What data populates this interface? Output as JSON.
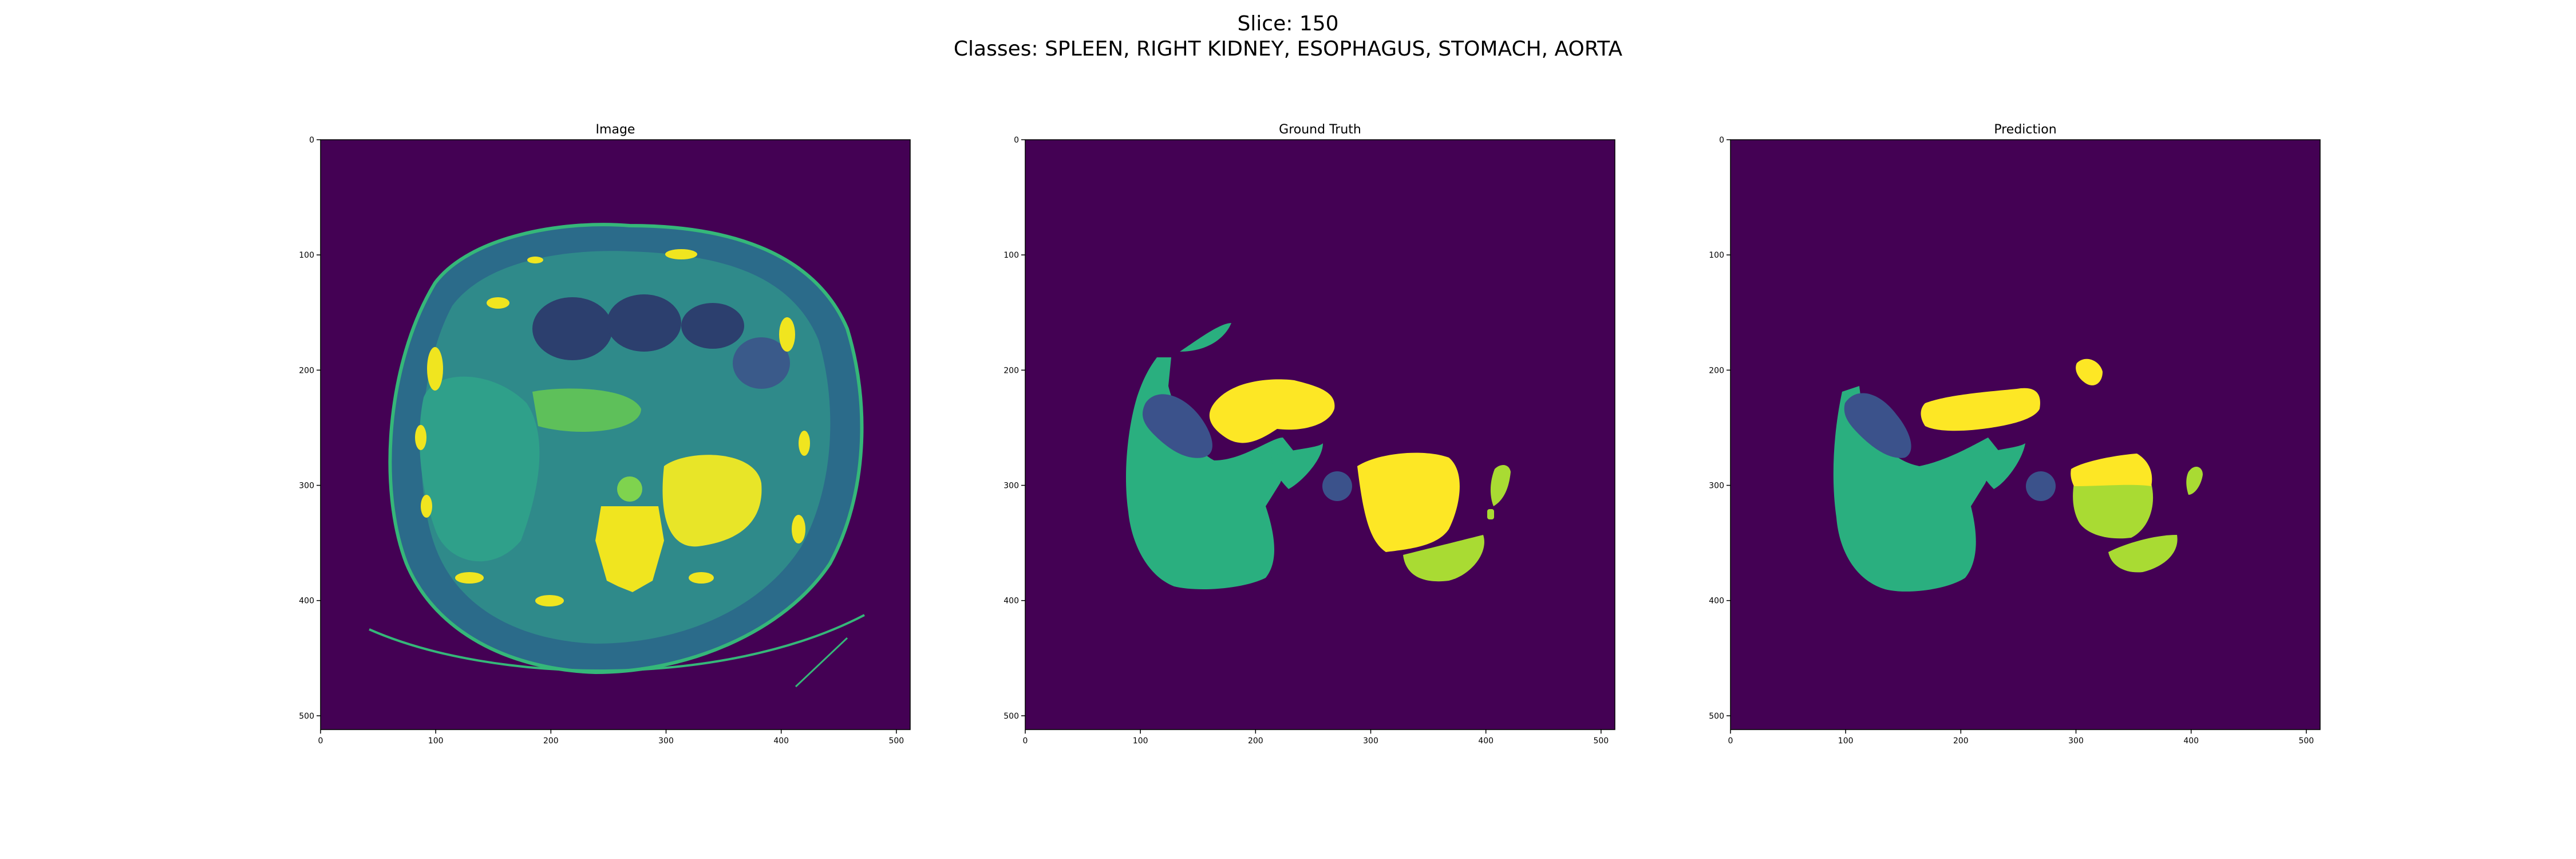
{
  "figure": {
    "title_line1": "Slice: 150",
    "title_line2": "Classes: SPLEEN, RIGHT KIDNEY, ESOPHAGUS, STOMACH, AORTA"
  },
  "panels": [
    {
      "title": "Image"
    },
    {
      "title": "Ground Truth"
    },
    {
      "title": "Prediction"
    }
  ],
  "axis": {
    "x_ticks": [
      "0",
      "100",
      "200",
      "300",
      "400",
      "500"
    ],
    "y_ticks": [
      "0",
      "100",
      "200",
      "300",
      "400",
      "500"
    ],
    "range": [
      0,
      512
    ]
  },
  "colors": {
    "background": "#440154",
    "class_dark_blue": "#3b528b",
    "class_teal": "#2aaf7f",
    "class_lime": "#a9db33",
    "class_yellow": "#fde725",
    "body_tissue": "#2f6d8e",
    "body_bright": "#31c17c"
  }
}
